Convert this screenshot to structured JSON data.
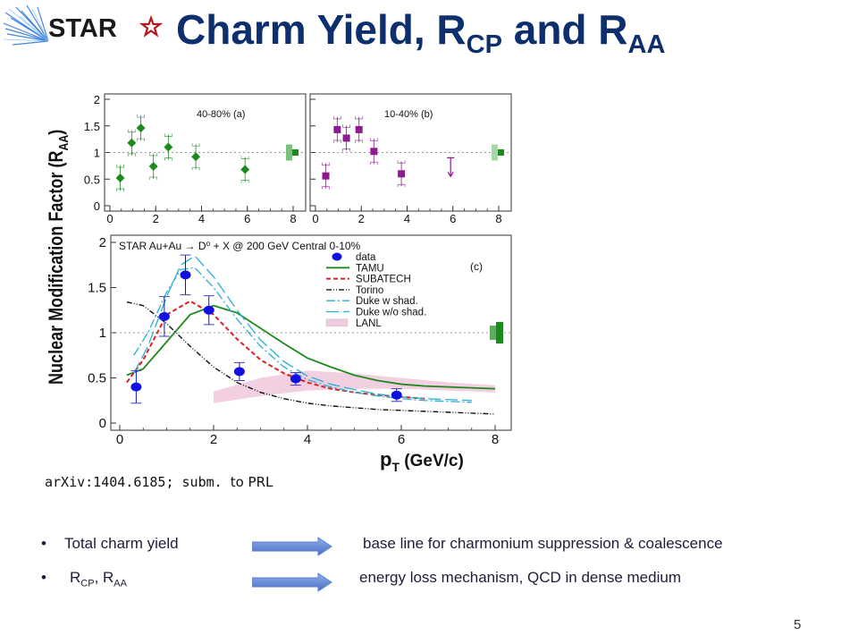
{
  "header": {
    "logo_text": "STAR",
    "title_main": "Charm Yield, R",
    "title_sub1": "CP",
    "title_mid": " and R",
    "title_sub2": "AA"
  },
  "figure": {
    "ylabel": "Nuclear Modification Factor (R",
    "ylabel_sub": "AA",
    "ylabel_end": ")",
    "xlabel": "p",
    "xlabel_sub": "T",
    "xlabel_units": " (GeV/c)",
    "panel_a_label": "40-80% (a)",
    "panel_b_label": "10-40% (b)",
    "panel_c_title": "STAR Au+Au → D⁰ + X @ 200 GeV Central 0-10%",
    "panel_c_label": "(c)",
    "legend": [
      "data",
      "TAMU",
      "SUBATECH",
      "Torino",
      "Duke w shad.",
      "Duke w/o shad.",
      "LANL"
    ]
  },
  "chart_data": [
    {
      "type": "scatter",
      "panel": "(a)",
      "title": "40-80% (a)",
      "xlim": [
        0,
        8
      ],
      "ylim": [
        0,
        2
      ],
      "x": [
        0.45,
        0.95,
        1.35,
        1.9,
        2.55,
        3.75,
        5.9
      ],
      "y": [
        0.52,
        1.18,
        1.46,
        0.74,
        1.1,
        0.92,
        0.68
      ],
      "color": "#1d8a1d",
      "marker": "diamond",
      "reference_line": 1
    },
    {
      "type": "scatter",
      "panel": "(b)",
      "title": "10-40% (b)",
      "xlim": [
        0,
        8
      ],
      "ylim": [
        0,
        2
      ],
      "x": [
        0.45,
        0.95,
        1.35,
        1.9,
        2.55,
        3.75
      ],
      "y": [
        0.56,
        1.43,
        1.27,
        1.43,
        1.02,
        0.6
      ],
      "upper_limit": {
        "x": 5.9,
        "y": 0.7
      },
      "color": "#8e1b8e",
      "marker": "square",
      "reference_line": 1
    },
    {
      "type": "scatter",
      "panel": "(c)",
      "title": "STAR Au+Au → D⁰ + X @ 200 GeV Central 0-10%",
      "xlabel": "p_T (GeV/c)",
      "ylabel": "Nuclear Modification Factor (R_AA)",
      "xlim": [
        0,
        8
      ],
      "ylim": [
        0,
        2
      ],
      "x_ticks": [
        0,
        2,
        4,
        6,
        8
      ],
      "y_ticks": [
        0,
        0.5,
        1,
        1.5,
        2
      ],
      "legend_position": "top-right",
      "reference_line": 1,
      "series": [
        {
          "name": "data",
          "x": [
            0.35,
            0.95,
            1.4,
            1.9,
            2.55,
            3.75,
            5.9
          ],
          "y": [
            0.4,
            1.18,
            1.64,
            1.25,
            0.57,
            0.49,
            0.31
          ],
          "err": [
            0.18,
            0.22,
            0.22,
            0.16,
            0.1,
            0.07,
            0.07
          ],
          "color": "#1010e0"
        },
        {
          "name": "TAMU",
          "x": [
            0.15,
            0.5,
            1,
            1.5,
            2,
            2.5,
            3,
            3.5,
            4,
            4.5,
            5,
            5.5,
            6,
            6.5,
            7,
            7.5,
            8
          ],
          "y": [
            0.53,
            0.6,
            0.9,
            1.2,
            1.3,
            1.22,
            1.05,
            0.88,
            0.72,
            0.62,
            0.53,
            0.47,
            0.43,
            0.41,
            0.4,
            0.39,
            0.38
          ],
          "color": "#1d8a1d"
        },
        {
          "name": "SUBATECH",
          "x": [
            0.15,
            0.5,
            1,
            1.5,
            2,
            2.5,
            3,
            3.5,
            4,
            4.5,
            5,
            5.5,
            6,
            6.5
          ],
          "y": [
            0.45,
            0.7,
            1.2,
            1.35,
            1.2,
            0.93,
            0.7,
            0.55,
            0.45,
            0.38,
            0.34,
            0.31,
            0.29,
            0.27
          ],
          "color": "#e02020"
        },
        {
          "name": "Torino",
          "x": [
            0.15,
            0.5,
            1,
            1.5,
            2,
            2.5,
            3,
            3.5,
            4,
            4.5,
            5,
            5.5,
            6,
            6.5,
            7,
            7.5,
            8
          ],
          "y": [
            1.34,
            1.3,
            1.1,
            0.85,
            0.62,
            0.45,
            0.34,
            0.27,
            0.22,
            0.19,
            0.17,
            0.15,
            0.14,
            0.13,
            0.12,
            0.11,
            0.1
          ],
          "color": "#111111"
        },
        {
          "name": "Duke w shad.",
          "x": [
            0.3,
            0.6,
            1,
            1.3,
            1.6,
            2,
            2.5,
            3,
            3.5,
            4,
            4.5,
            5,
            5.5,
            6,
            6.5,
            7,
            7.5
          ],
          "y": [
            0.75,
            1.0,
            1.45,
            1.7,
            1.72,
            1.5,
            1.15,
            0.85,
            0.62,
            0.48,
            0.4,
            0.34,
            0.3,
            0.27,
            0.25,
            0.24,
            0.23
          ],
          "color": "#2aaed6"
        },
        {
          "name": "Duke w/o shad.",
          "x": [
            0.3,
            0.6,
            1,
            1.3,
            1.6,
            2,
            2.5,
            3,
            3.5,
            4,
            4.5,
            5,
            5.5,
            6,
            6.5,
            7,
            7.5
          ],
          "y": [
            0.55,
            0.85,
            1.4,
            1.75,
            1.85,
            1.62,
            1.25,
            0.92,
            0.68,
            0.52,
            0.43,
            0.37,
            0.32,
            0.29,
            0.27,
            0.26,
            0.25
          ],
          "color": "#2aaed6"
        },
        {
          "name": "LANL",
          "x": [
            2,
            3,
            4,
            5,
            6,
            7,
            8
          ],
          "y_low": [
            0.22,
            0.3,
            0.36,
            0.38,
            0.38,
            0.36,
            0.34
          ],
          "y_high": [
            0.35,
            0.5,
            0.58,
            0.55,
            0.5,
            0.45,
            0.42
          ],
          "color": "#e7a8c8"
        }
      ]
    }
  ],
  "citation": {
    "code": "arXiv:1404.6185; subm. ",
    "tail": "to PRL"
  },
  "bullets": [
    {
      "dot": "•",
      "left_text": "Total charm yield",
      "right_text": "base line for charmonium suppression  & coalescence"
    },
    {
      "dot": "•",
      "left_main": "R",
      "left_sub1": "CP",
      "left_mid": ", R",
      "left_sub2": "AA",
      "right_text": "energy loss mechanism, QCD in dense medium"
    }
  ],
  "slide_number": "5",
  "colors": {
    "title": "#0d2f6e",
    "arrow": "#5b7fd0",
    "star_red": "#b4191f"
  }
}
